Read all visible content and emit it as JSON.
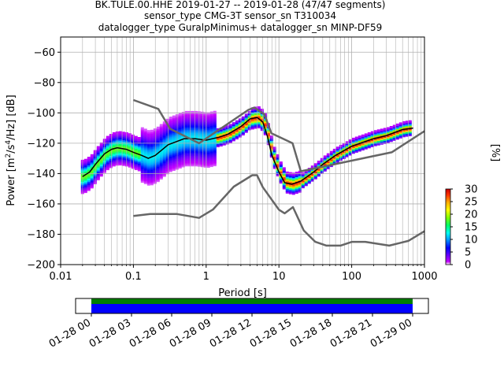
{
  "chart_data": [
    {
      "type": "heatmap",
      "title_lines": [
        "BK.TULE.00.HHE   2019-01-27 -- 2019-01-28  (47/47 segments)",
        "sensor_type CMG-3T sensor_sn T310034",
        "datalogger_type GuralpMinimus+ datalogger_sn MINP-DF59"
      ],
      "xlabel": "Period [s]",
      "ylabel_parts": [
        "Power [m",
        "2",
        "/s",
        "4",
        "/Hz] [dB]"
      ],
      "xscale": "log",
      "xlim": [
        0.01,
        1000
      ],
      "ylim": [
        -200,
        -50
      ],
      "xticks": [
        0.01,
        0.1,
        1,
        10,
        100,
        1000
      ],
      "xtick_labels": [
        "0.01",
        "0.1",
        "1",
        "10",
        "100",
        "1000"
      ],
      "yticks": [
        -200,
        -180,
        -160,
        -140,
        -120,
        -100,
        -80,
        -60
      ],
      "ytick_labels": [
        "−200",
        "−180",
        "−160",
        "−140",
        "−120",
        "−100",
        "−80",
        "−60"
      ],
      "grid": true,
      "colorbar": {
        "label": "[%]",
        "range": [
          0,
          30
        ],
        "ticks": [
          0,
          5,
          10,
          15,
          20,
          25,
          30
        ],
        "tick_labels": [
          "0",
          "5",
          "10",
          "15",
          "20",
          "25",
          "30"
        ]
      },
      "series": [
        {
          "role": "mean-psd",
          "color": "#000000",
          "x": [
            0.02,
            0.025,
            0.03,
            0.04,
            0.05,
            0.06,
            0.08,
            0.1,
            0.13,
            0.16,
            0.2,
            0.3,
            0.5,
            0.7,
            1,
            1.5,
            2,
            3,
            4,
            5,
            6,
            7,
            8,
            10,
            12,
            15,
            20,
            30,
            40,
            60,
            100,
            200,
            300,
            500,
            700
          ],
          "y": [
            -142,
            -139,
            -134,
            -127,
            -124,
            -123,
            -124,
            -126,
            -128,
            -130,
            -128,
            -121,
            -117,
            -117,
            -118,
            -116,
            -114,
            -109,
            -104,
            -103,
            -106,
            -116,
            -128,
            -139,
            -146,
            -147,
            -145,
            -139,
            -134,
            -128,
            -122,
            -117,
            -115,
            -111,
            -110
          ]
        },
        {
          "role": "high-noise-model",
          "color": "#666666",
          "x": [
            0.1,
            0.22,
            0.32,
            0.8,
            3.8,
            4.6,
            6.3,
            7.9,
            15.4,
            20,
            354.8,
            1000
          ],
          "y": [
            -91.5,
            -97.4,
            -110.5,
            -120,
            -98,
            -96.5,
            -101,
            -113.5,
            -120,
            -138.5,
            -126,
            -112
          ]
        },
        {
          "role": "low-noise-model",
          "color": "#666666",
          "x": [
            0.1,
            0.17,
            0.4,
            0.8,
            1.24,
            2.4,
            4.3,
            5,
            6,
            10,
            12,
            15.6,
            21.9,
            31.6,
            45,
            70,
            101,
            154,
            328,
            600,
            1000
          ],
          "y": [
            -168,
            -166.7,
            -166.7,
            -169.2,
            -163.7,
            -148.6,
            -141.1,
            -141.1,
            -149,
            -163.8,
            -166.2,
            -162.1,
            -177.5,
            -185,
            -187.5,
            -187.5,
            -185,
            -185,
            -187.5,
            -184.4,
            -178
          ]
        }
      ]
    },
    {
      "type": "timeline",
      "xtick_labels": [
        "01-28 00",
        "01-28 03",
        "01-28 06",
        "01-28 09",
        "01-28 12",
        "01-28 15",
        "01-28 18",
        "01-28 21",
        "01-29 00"
      ],
      "data_start_hour": 0,
      "data_end_hour": 24,
      "colors": {
        "data": "#0000ff",
        "gaps": "#008000"
      }
    }
  ]
}
